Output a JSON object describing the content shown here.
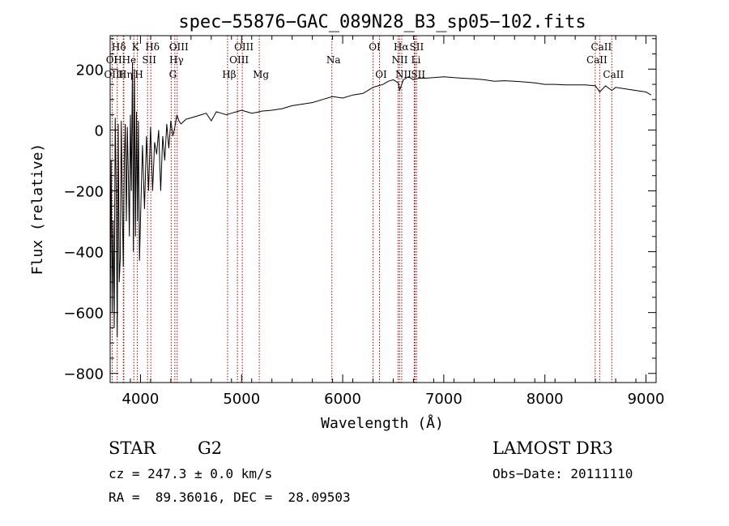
{
  "chart_data": {
    "type": "line",
    "title": "spec−55876−GAC_089N28_B3_sp05−102.fits",
    "xlabel": "Wavelength (Å)",
    "ylabel": "Flux (relative)",
    "xlim": [
      3700,
      9100
    ],
    "ylim": [
      -830,
      310
    ],
    "x_ticks": [
      4000,
      5000,
      6000,
      7000,
      8000,
      9000
    ],
    "y_ticks": [
      -800,
      -600,
      -400,
      -200,
      0,
      200
    ],
    "x_tick_labels": [
      "4000",
      "5000",
      "6000",
      "7000",
      "8000",
      "9000"
    ],
    "y_tick_labels": [
      "−800",
      "−600",
      "−400",
      "−200",
      "0",
      "200"
    ],
    "line_color": "#000000",
    "marker_color": "#b00000",
    "series": [
      {
        "name": "flux",
        "x": [
          3700,
          3710,
          3720,
          3730,
          3740,
          3750,
          3760,
          3770,
          3780,
          3790,
          3800,
          3810,
          3820,
          3830,
          3840,
          3850,
          3860,
          3870,
          3880,
          3890,
          3900,
          3910,
          3920,
          3930,
          3940,
          3950,
          3960,
          3970,
          3980,
          3990,
          4000,
          4020,
          4040,
          4060,
          4080,
          4100,
          4120,
          4140,
          4160,
          4180,
          4200,
          4220,
          4240,
          4260,
          4280,
          4300,
          4320,
          4340,
          4360,
          4380,
          4400,
          4450,
          4500,
          4550,
          4600,
          4650,
          4700,
          4750,
          4800,
          4850,
          4900,
          4950,
          5000,
          5050,
          5100,
          5150,
          5200,
          5300,
          5400,
          5500,
          5600,
          5700,
          5800,
          5900,
          6000,
          6100,
          6200,
          6250,
          6300,
          6350,
          6400,
          6450,
          6500,
          6550,
          6563,
          6600,
          6650,
          6700,
          6750,
          6800,
          6900,
          7000,
          7100,
          7200,
          7300,
          7400,
          7500,
          7600,
          7700,
          7800,
          7900,
          8000,
          8100,
          8200,
          8300,
          8400,
          8500,
          8542,
          8600,
          8662,
          8700,
          8800,
          8900,
          9000,
          9050
        ],
        "y": [
          -700,
          -100,
          -600,
          -300,
          -650,
          40,
          -200,
          -680,
          20,
          -500,
          -420,
          30,
          -250,
          -450,
          -100,
          20,
          -300,
          10,
          -150,
          -350,
          50,
          -200,
          220,
          -400,
          200,
          -350,
          60,
          -300,
          30,
          -430,
          -300,
          -50,
          -260,
          -20,
          -200,
          10,
          -200,
          -40,
          -80,
          0,
          -200,
          -20,
          -100,
          20,
          -60,
          30,
          -20,
          10,
          50,
          30,
          20,
          35,
          40,
          45,
          50,
          55,
          30,
          60,
          55,
          50,
          55,
          60,
          65,
          60,
          55,
          58,
          62,
          65,
          70,
          80,
          85,
          90,
          100,
          110,
          105,
          115,
          120,
          130,
          140,
          145,
          150,
          160,
          165,
          155,
          130,
          165,
          175,
          165,
          170,
          170,
          172,
          175,
          172,
          170,
          168,
          165,
          160,
          162,
          160,
          158,
          155,
          150,
          150,
          148,
          148,
          148,
          145,
          125,
          145,
          130,
          140,
          135,
          130,
          125,
          115
        ]
      }
    ],
    "line_markers": [
      {
        "label": "Hδ",
        "x": 3770,
        "row": 1
      },
      {
        "label": "OI",
        "x": 3700,
        "row": 2
      },
      {
        "label": "HHe",
        "x": 3830,
        "row": 2
      },
      {
        "label": "OIII",
        "x": 3720,
        "row": 3
      },
      {
        "label": "Hη",
        "x": 3835,
        "row": 3
      },
      {
        "label": "K",
        "x": 3934,
        "row": 1
      },
      {
        "label": "SII",
        "x": 4070,
        "row": 2
      },
      {
        "label": "H",
        "x": 3969,
        "row": 3
      },
      {
        "label": "Hδ",
        "x": 4102,
        "row": 1
      },
      {
        "label": "OIII",
        "x": 4363,
        "row": 1
      },
      {
        "label": "Hγ",
        "x": 4340,
        "row": 2
      },
      {
        "label": "G",
        "x": 4304,
        "row": 3
      },
      {
        "label": "Hβ",
        "x": 4861,
        "row": 3
      },
      {
        "label": "OIII",
        "x": 5007,
        "row": 1
      },
      {
        "label": "OIII",
        "x": 4959,
        "row": 2
      },
      {
        "label": "Mg",
        "x": 5175,
        "row": 3
      },
      {
        "label": "Na",
        "x": 5893,
        "row": 2
      },
      {
        "label": "OI",
        "x": 6300,
        "row": 1
      },
      {
        "label": "OI",
        "x": 6364,
        "row": 3
      },
      {
        "label": "Hα",
        "x": 6563,
        "row": 1
      },
      {
        "label": "SII",
        "x": 6716,
        "row": 1
      },
      {
        "label": "NII",
        "x": 6548,
        "row": 2
      },
      {
        "label": "Li",
        "x": 6708,
        "row": 2
      },
      {
        "label": "NII",
        "x": 6584,
        "row": 3
      },
      {
        "label": "SII",
        "x": 6731,
        "row": 3
      },
      {
        "label": "CaII",
        "x": 8542,
        "row": 1
      },
      {
        "label": "CaII",
        "x": 8498,
        "row": 2
      },
      {
        "label": "CaII",
        "x": 8662,
        "row": 3
      }
    ],
    "annotations": {
      "class": "STAR",
      "subclass": "G2",
      "survey": "LAMOST DR3",
      "cz": "cz = 247.3 ± 0.0 km/s",
      "obs_date": "Obs−Date: 20111110",
      "radec": "RA =  89.36016, DEC =  28.09503"
    }
  }
}
